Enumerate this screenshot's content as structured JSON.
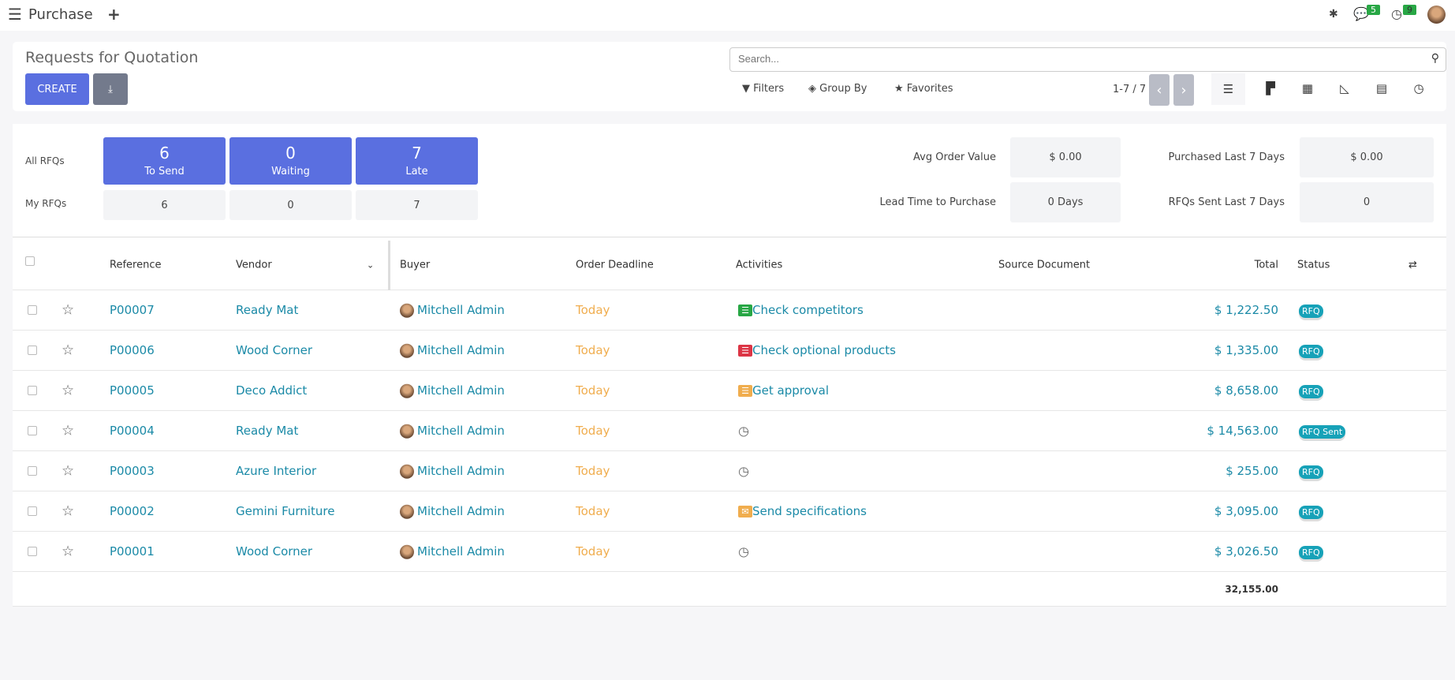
{
  "topbar": {
    "app_title": "Purchase",
    "chat_count": "5",
    "activity_count": "9"
  },
  "control": {
    "title": "Requests for Quotation",
    "create_label": "CREATE",
    "search_placeholder": "Search...",
    "filters": "Filters",
    "group_by": "Group By",
    "favorites": "Favorites",
    "pager": "1-7 / 7"
  },
  "dashboard": {
    "all_label": "All RFQs",
    "my_label": "My RFQs",
    "tiles": [
      {
        "count": "6",
        "label": "To Send",
        "mine": "6"
      },
      {
        "count": "0",
        "label": "Waiting",
        "mine": "0"
      },
      {
        "count": "7",
        "label": "Late",
        "mine": "7"
      }
    ],
    "stats": [
      {
        "label": "Avg Order Value",
        "value": "$ 0.00"
      },
      {
        "label": "Lead Time to Purchase",
        "value": "0 Days"
      },
      {
        "label": "Purchased Last 7 Days",
        "value": "$ 0.00"
      },
      {
        "label": "RFQs Sent Last 7 Days",
        "value": "0"
      }
    ]
  },
  "table": {
    "headers": {
      "reference": "Reference",
      "vendor": "Vendor",
      "buyer": "Buyer",
      "deadline": "Order Deadline",
      "activities": "Activities",
      "source": "Source Document",
      "total": "Total",
      "status": "Status"
    },
    "rows": [
      {
        "ref": "P00007",
        "vendor": "Ready Mat",
        "buyer": "Mitchell Admin",
        "deadline": "Today",
        "activity": "Check competitors",
        "activity_icon": "list-icon",
        "activity_color": "#28a745",
        "total": "$ 1,222.50",
        "status": "RFQ"
      },
      {
        "ref": "P00006",
        "vendor": "Wood Corner",
        "buyer": "Mitchell Admin",
        "deadline": "Today",
        "activity": "Check optional products",
        "activity_icon": "list-icon",
        "activity_color": "#dc3545",
        "total": "$ 1,335.00",
        "status": "RFQ"
      },
      {
        "ref": "P00005",
        "vendor": "Deco Addict",
        "buyer": "Mitchell Admin",
        "deadline": "Today",
        "activity": "Get approval",
        "activity_icon": "list-icon",
        "activity_color": "#f0ad4e",
        "total": "$ 8,658.00",
        "status": "RFQ"
      },
      {
        "ref": "P00004",
        "vendor": "Ready Mat",
        "buyer": "Mitchell Admin",
        "deadline": "Today",
        "activity": "",
        "activity_icon": "clock-icon",
        "activity_color": "#666666",
        "total": "$ 14,563.00",
        "status": "RFQ Sent"
      },
      {
        "ref": "P00003",
        "vendor": "Azure Interior",
        "buyer": "Mitchell Admin",
        "deadline": "Today",
        "activity": "",
        "activity_icon": "clock-icon",
        "activity_color": "#666666",
        "total": "$ 255.00",
        "status": "RFQ"
      },
      {
        "ref": "P00002",
        "vendor": "Gemini Furniture",
        "buyer": "Mitchell Admin",
        "deadline": "Today",
        "activity": "Send specifications",
        "activity_icon": "envelope-icon",
        "activity_color": "#f0ad4e",
        "total": "$ 3,095.00",
        "status": "RFQ"
      },
      {
        "ref": "P00001",
        "vendor": "Wood Corner",
        "buyer": "Mitchell Admin",
        "deadline": "Today",
        "activity": "",
        "activity_icon": "clock-icon",
        "activity_color": "#666666",
        "total": "$ 3,026.50",
        "status": "RFQ"
      }
    ],
    "sum_total": "32,155.00"
  }
}
